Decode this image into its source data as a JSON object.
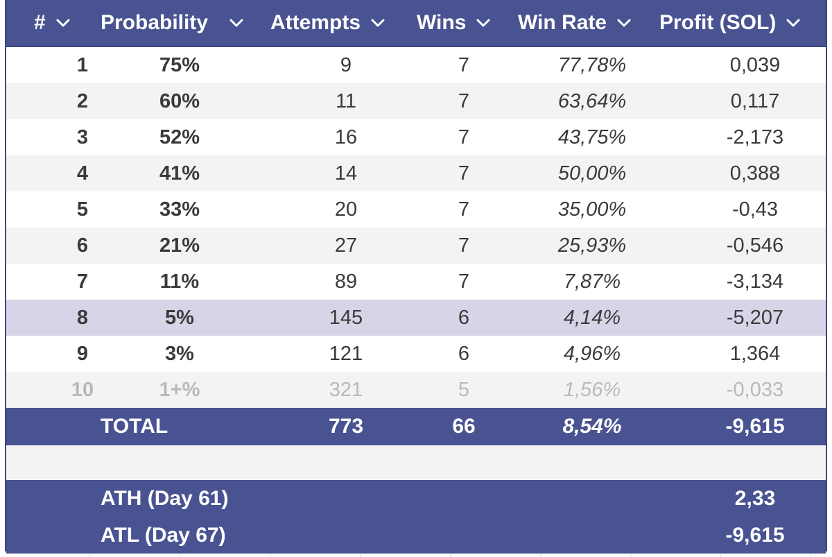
{
  "columns": [
    {
      "label": "#"
    },
    {
      "label": "Probability"
    },
    {
      "label": "Attempts"
    },
    {
      "label": "Wins"
    },
    {
      "label": "Win Rate"
    },
    {
      "label": "Profit (SOL)"
    }
  ],
  "rows": [
    {
      "num": "1",
      "probability": "75%",
      "attempts": "9",
      "wins": "7",
      "win_rate": "77,78%",
      "profit": "0,039"
    },
    {
      "num": "2",
      "probability": "60%",
      "attempts": "11",
      "wins": "7",
      "win_rate": "63,64%",
      "profit": "0,117"
    },
    {
      "num": "3",
      "probability": "52%",
      "attempts": "16",
      "wins": "7",
      "win_rate": "43,75%",
      "profit": "-2,173"
    },
    {
      "num": "4",
      "probability": "41%",
      "attempts": "14",
      "wins": "7",
      "win_rate": "50,00%",
      "profit": "0,388"
    },
    {
      "num": "5",
      "probability": "33%",
      "attempts": "20",
      "wins": "7",
      "win_rate": "35,00%",
      "profit": "-0,43"
    },
    {
      "num": "6",
      "probability": "21%",
      "attempts": "27",
      "wins": "7",
      "win_rate": "25,93%",
      "profit": "-0,546"
    },
    {
      "num": "7",
      "probability": "11%",
      "attempts": "89",
      "wins": "7",
      "win_rate": "7,87%",
      "profit": "-3,134"
    },
    {
      "num": "8",
      "probability": "5%",
      "attempts": "145",
      "wins": "6",
      "win_rate": "4,14%",
      "profit": "-5,207"
    },
    {
      "num": "9",
      "probability": "3%",
      "attempts": "121",
      "wins": "6",
      "win_rate": "4,96%",
      "profit": "1,364"
    },
    {
      "num": "10",
      "probability": "1+%",
      "attempts": "321",
      "wins": "5",
      "win_rate": "1,56%",
      "profit": "-0,033"
    }
  ],
  "total": {
    "label": "TOTAL",
    "attempts": "773",
    "wins": "66",
    "win_rate": "8,54%",
    "profit": "-9,615"
  },
  "summary": {
    "ath_label": "ATH (Day 61)",
    "ath_value": "2,33",
    "atl_label": "ATL (Day 67)",
    "atl_value": "-9,615"
  },
  "icons": {
    "column_menu": "chevron-down-icon"
  },
  "colors": {
    "header_bg": "#4a5391",
    "highlight_row": "#d9d3e8",
    "alt_row": "#f3f3f3",
    "faded_text": "#b9b9b9"
  }
}
